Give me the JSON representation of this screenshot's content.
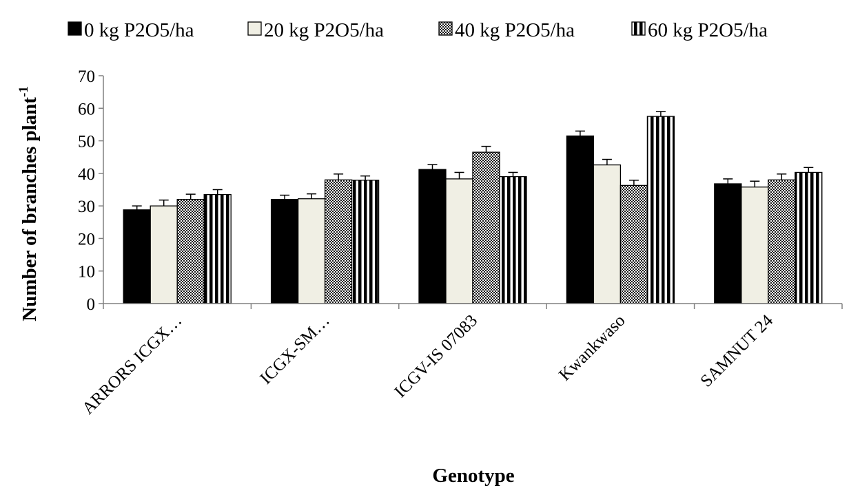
{
  "chart_data": {
    "type": "bar",
    "xlabel": "Genotype",
    "ylabel": "Number of branches plant",
    "ylabel_superscript": "-1",
    "ylim": [
      0,
      70
    ],
    "yticks": [
      0,
      10,
      20,
      30,
      40,
      50,
      60,
      70
    ],
    "categories": [
      "ARRORS ICGX…",
      "ICGX-SM…",
      "ICGV-IS 07083",
      "Kwankwaso",
      "SAMNUT 24"
    ],
    "legend_position": "top",
    "series": [
      {
        "name": "0 kg P2O5/ha",
        "pattern": "solid-black",
        "values": [
          28.8,
          32.0,
          41.2,
          51.5,
          36.8
        ],
        "errors": [
          1.2,
          1.3,
          1.5,
          1.5,
          1.5
        ]
      },
      {
        "name": "20 kg P2O5/ha",
        "pattern": "solid-cream",
        "values": [
          30.0,
          32.2,
          38.3,
          42.6,
          35.8
        ],
        "errors": [
          1.8,
          1.5,
          2.0,
          1.7,
          1.8
        ]
      },
      {
        "name": "40 kg P2O5/ha",
        "pattern": "checker-dots",
        "values": [
          32.0,
          38.0,
          46.5,
          36.3,
          38.0
        ],
        "errors": [
          1.6,
          1.8,
          1.8,
          1.6,
          1.8
        ]
      },
      {
        "name": "60 kg P2O5/ha",
        "pattern": "vertical-stripes",
        "values": [
          33.5,
          37.9,
          39.0,
          57.5,
          40.3
        ],
        "errors": [
          1.5,
          1.3,
          1.3,
          1.5,
          1.5
        ]
      }
    ],
    "colors": {
      "black": "#000000",
      "cream": "#f0efe4",
      "axis": "#808080"
    }
  }
}
